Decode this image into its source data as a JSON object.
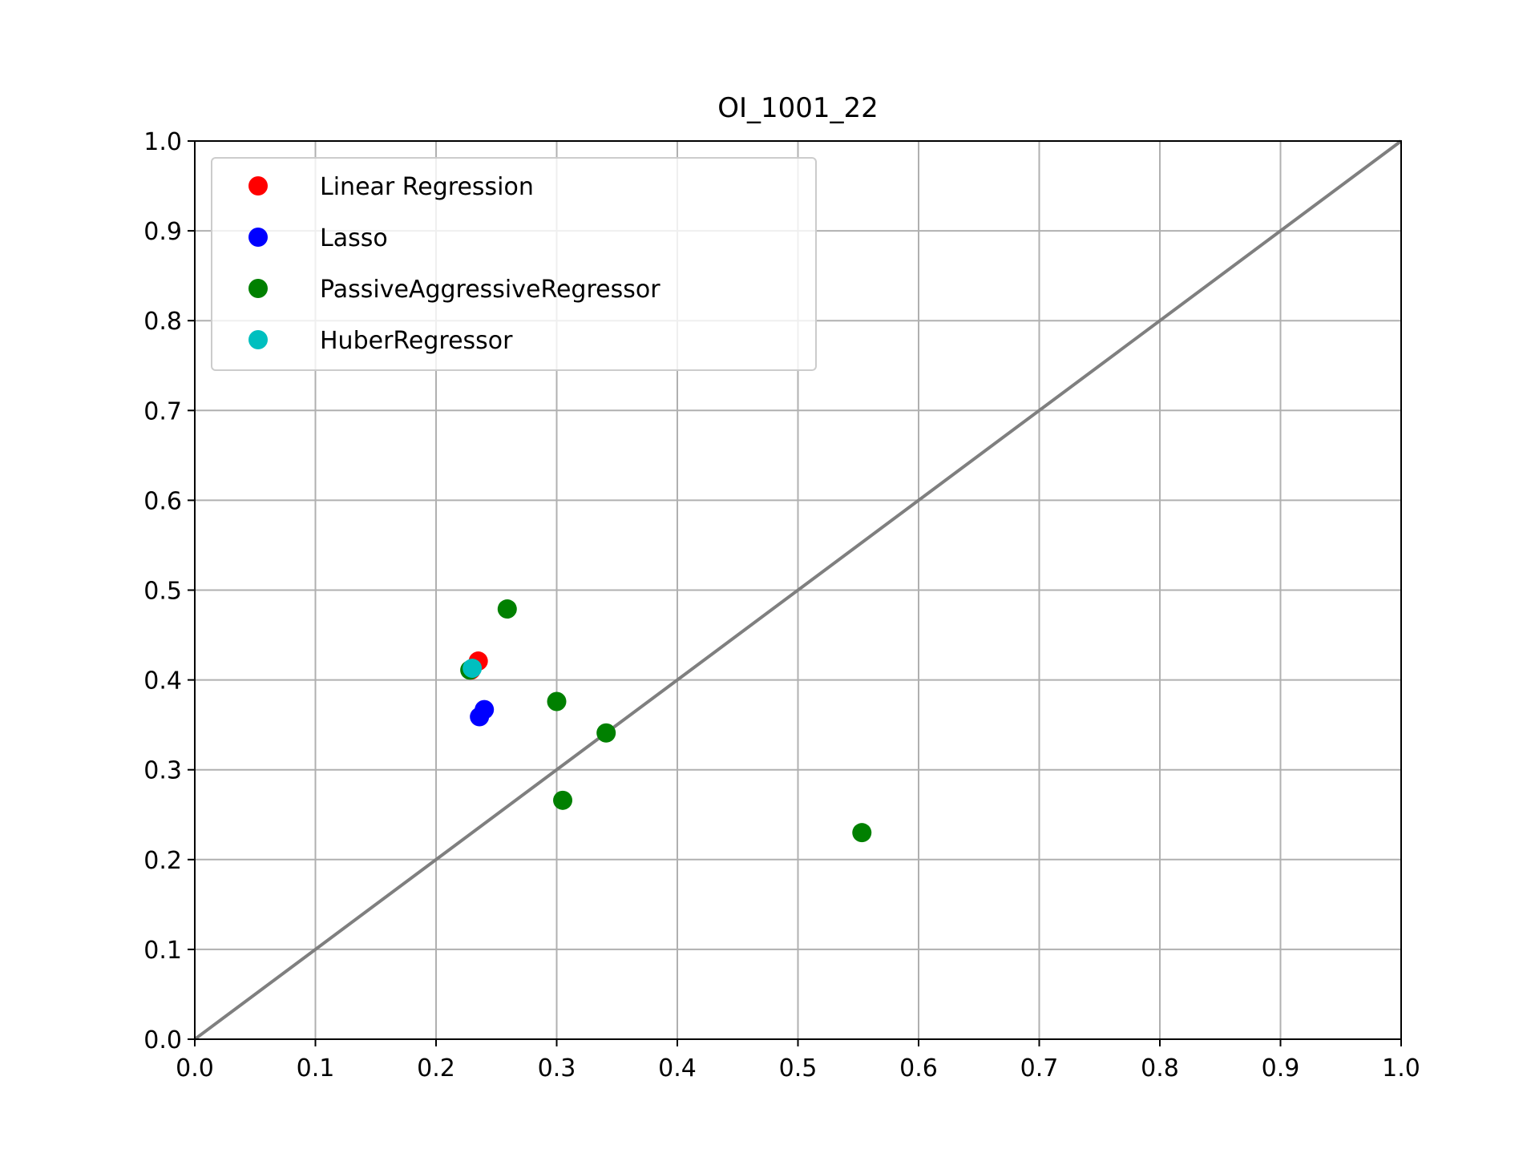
{
  "chart_data": {
    "type": "scatter",
    "title": "OI_1001_22",
    "xlabel": "",
    "ylabel": "",
    "xlim": [
      0.0,
      1.0
    ],
    "ylim": [
      0.0,
      1.0
    ],
    "x_ticks": [
      "0.0",
      "0.1",
      "0.2",
      "0.3",
      "0.4",
      "0.5",
      "0.6",
      "0.7",
      "0.8",
      "0.9",
      "1.0"
    ],
    "y_ticks": [
      "0.0",
      "0.1",
      "0.2",
      "0.3",
      "0.4",
      "0.5",
      "0.6",
      "0.7",
      "0.8",
      "0.9",
      "1.0"
    ],
    "grid": true,
    "legend_position": "top-left",
    "reference_line": {
      "points": [
        [
          0.0,
          0.0
        ],
        [
          1.0,
          1.0
        ]
      ],
      "color": "#7f7f7f"
    },
    "series": [
      {
        "name": "Linear Regression",
        "color": "#ff0000",
        "points": [
          {
            "x": 0.235,
            "y": 0.421
          },
          {
            "x": 0.229,
            "y": 0.411
          }
        ]
      },
      {
        "name": "Lasso",
        "color": "#0000ff",
        "points": [
          {
            "x": 0.24,
            "y": 0.367
          },
          {
            "x": 0.236,
            "y": 0.359
          }
        ]
      },
      {
        "name": "PassiveAggressiveRegressor",
        "color": "#008000",
        "points": [
          {
            "x": 0.259,
            "y": 0.479
          },
          {
            "x": 0.228,
            "y": 0.411
          },
          {
            "x": 0.3,
            "y": 0.376
          },
          {
            "x": 0.341,
            "y": 0.341
          },
          {
            "x": 0.305,
            "y": 0.266
          },
          {
            "x": 0.553,
            "y": 0.23
          }
        ]
      },
      {
        "name": "HuberRegressor",
        "color": "#00bfbf",
        "points": [
          {
            "x": 0.23,
            "y": 0.413
          }
        ]
      }
    ]
  }
}
